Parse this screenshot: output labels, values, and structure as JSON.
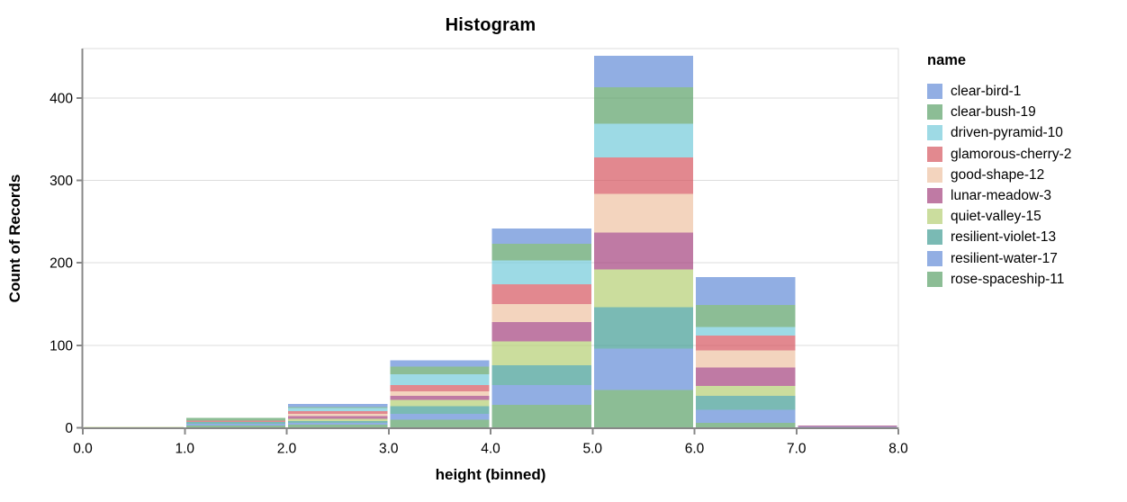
{
  "title": "Histogram",
  "legend": {
    "title": "name",
    "position": "right"
  },
  "chart_data": {
    "type": "bar",
    "subtype": "stacked-histogram",
    "title": "Histogram",
    "xlabel": "height (binned)",
    "ylabel": "Count of Records",
    "xlim": [
      0,
      8
    ],
    "ylim": [
      0,
      460
    ],
    "x_ticks": [
      0,
      1,
      2,
      3,
      4,
      5,
      6,
      7,
      8
    ],
    "x_tick_labels": [
      "0.0",
      "1.0",
      "2.0",
      "3.0",
      "4.0",
      "5.0",
      "6.0",
      "7.0",
      "8.0"
    ],
    "y_ticks": [
      0,
      100,
      200,
      300,
      400
    ],
    "grid": "horizontal-only",
    "legend_position": "right",
    "bar_opacity": 0.7,
    "bin_width": 1,
    "bins": [
      [
        0,
        1
      ],
      [
        1,
        2
      ],
      [
        2,
        3
      ],
      [
        3,
        4
      ],
      [
        4,
        5
      ],
      [
        5,
        6
      ],
      [
        6,
        7
      ],
      [
        7,
        8
      ]
    ],
    "bin_totals": [
      1,
      12,
      29,
      82,
      242,
      451,
      183,
      3
    ],
    "stack_order": "first series stacked on top, last series at bottom",
    "series": [
      {
        "name": "clear-bird-1",
        "color": "#92aee3",
        "base_color": "#638bd7",
        "values": [
          0,
          0,
          4,
          8,
          19,
          38,
          34,
          0
        ]
      },
      {
        "name": "clear-bush-19",
        "color": "#8cbd95",
        "base_color": "#5ba168",
        "values": [
          0,
          3,
          1,
          9,
          20,
          44,
          27,
          0
        ]
      },
      {
        "name": "driven-pyramid-10",
        "color": "#9edae5",
        "base_color": "#74cada",
        "values": [
          0,
          0,
          4,
          13,
          29,
          41,
          10,
          0
        ]
      },
      {
        "name": "glamorous-cherry-2",
        "color": "#e2898f",
        "base_color": "#d6565f",
        "values": [
          0,
          2,
          3,
          8,
          24,
          44,
          18,
          0
        ]
      },
      {
        "name": "good-shape-12",
        "color": "#f3d4be",
        "base_color": "#eec2a2",
        "values": [
          0,
          0,
          3,
          5,
          22,
          47,
          21,
          0
        ]
      },
      {
        "name": "lunar-meadow-3",
        "color": "#bf7aa4",
        "base_color": "#a4417d",
        "values": [
          0,
          0,
          3,
          5,
          23,
          45,
          22,
          2
        ]
      },
      {
        "name": "quiet-valley-15",
        "color": "#cbdd9e",
        "base_color": "#b5ce74",
        "values": [
          1,
          0,
          3,
          8,
          29,
          46,
          12,
          0
        ]
      },
      {
        "name": "resilient-violet-13",
        "color": "#7abab4",
        "base_color": "#419c94",
        "values": [
          0,
          2,
          2,
          9,
          24,
          50,
          17,
          0
        ]
      },
      {
        "name": "resilient-water-17",
        "color": "#92aee3",
        "base_color": "#638bd7",
        "values": [
          0,
          2,
          2,
          7,
          24,
          50,
          16,
          1
        ]
      },
      {
        "name": "rose-spaceship-11",
        "color": "#8cbd95",
        "base_color": "#5ba168",
        "values": [
          0,
          3,
          4,
          10,
          28,
          46,
          6,
          0
        ]
      }
    ],
    "axis_colors": {
      "domain": "#888888",
      "tick": "#888888",
      "grid": "#dddddd",
      "view_border": "#dddddd",
      "label": "#000000"
    }
  }
}
